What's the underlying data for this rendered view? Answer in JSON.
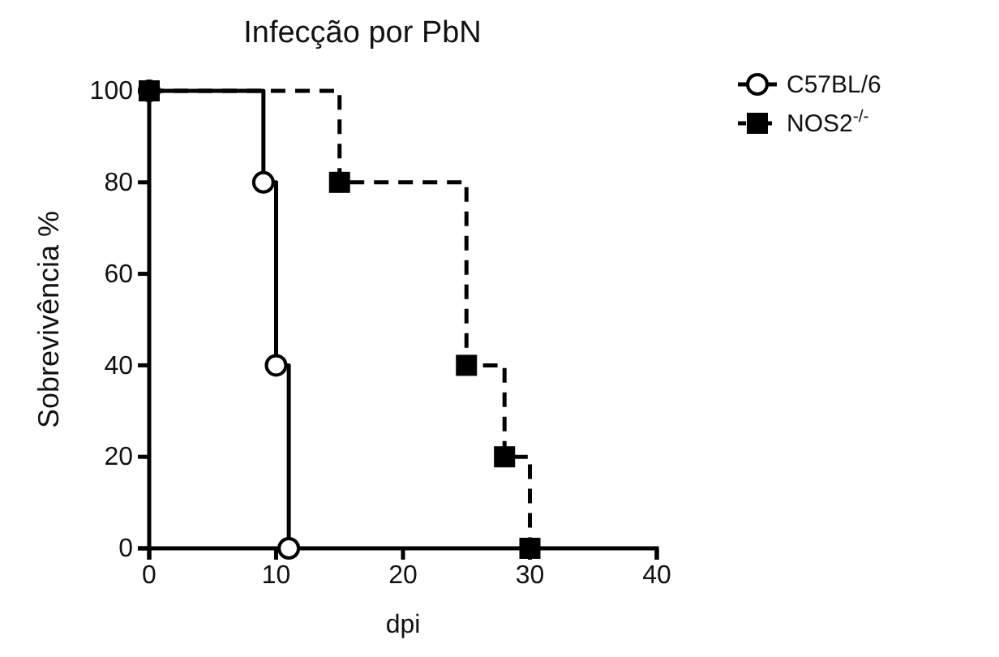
{
  "chart_data": {
    "type": "step",
    "title": "Infecção por PbN",
    "xlabel": "dpi",
    "ylabel": "Sobrevivência %",
    "xlim": [
      0,
      40
    ],
    "xticks": [
      0,
      10,
      20,
      30,
      40
    ],
    "ylim": [
      0,
      100
    ],
    "yticks": [
      0,
      20,
      40,
      60,
      80,
      100
    ],
    "grid": false,
    "legend": "top right",
    "series": [
      {
        "name": "C57BL/6",
        "color": "#000000",
        "marker": "circle",
        "line_style": "solid",
        "x": [
          0,
          9,
          10,
          11
        ],
        "values": [
          100,
          80,
          40,
          0
        ]
      },
      {
        "name": "NOS2$^{-/-}$",
        "color": "#000000",
        "marker": "square",
        "line_style": "dashed",
        "x": [
          0,
          15,
          25,
          28,
          30
        ],
        "values": [
          100,
          80,
          40,
          20,
          0
        ]
      }
    ]
  }
}
